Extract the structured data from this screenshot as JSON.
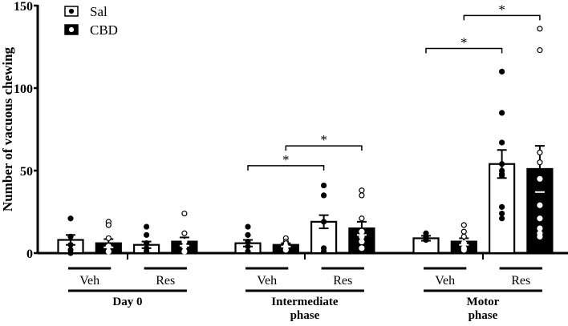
{
  "chart_data": {
    "type": "bar",
    "ylabel": "Number of vacuous chewing",
    "ylim": [
      0,
      150
    ],
    "yticks": [
      0,
      50,
      100,
      150
    ],
    "legend": {
      "placement": "top-left",
      "entries": [
        {
          "name": "Sal",
          "fill": "#ffffff",
          "marker": "#000000"
        },
        {
          "name": "CBD",
          "fill": "#000000",
          "marker": "#ffffff"
        }
      ]
    },
    "phases": [
      {
        "label": [
          "Day 0"
        ],
        "groups": [
          {
            "label": "Veh",
            "bars": [
              {
                "series": "Sal",
                "mean": 8,
                "sem": 3,
                "points": [
                  21,
                  10,
                  5,
                  2,
                  0
                ]
              },
              {
                "series": "CBD",
                "mean": 6,
                "sem": 2.5,
                "points": [
                  19,
                  17,
                  9,
                  4,
                  1
                ]
              }
            ]
          },
          {
            "label": "Res",
            "bars": [
              {
                "series": "Sal",
                "mean": 5,
                "sem": 2,
                "points": [
                  16,
                  11,
                  6,
                  3,
                  1
                ]
              },
              {
                "series": "CBD",
                "mean": 7,
                "sem": 2.5,
                "points": [
                  24,
                  12,
                  7,
                  4,
                  1
                ]
              }
            ]
          }
        ]
      },
      {
        "label": [
          "Intermediate",
          "phase"
        ],
        "groups": [
          {
            "label": "Veh",
            "bars": [
              {
                "series": "Sal",
                "mean": 6,
                "sem": 2,
                "points": [
                  16,
                  11,
                  7,
                  4,
                  1
                ]
              },
              {
                "series": "CBD",
                "mean": 5,
                "sem": 1,
                "points": [
                  9,
                  7,
                  6,
                  4,
                  2
                ]
              }
            ]
          },
          {
            "label": "Res",
            "bars": [
              {
                "series": "Sal",
                "mean": 19,
                "sem": 4,
                "points": [
                  41,
                  35,
                  19,
                  3,
                  1
                ]
              },
              {
                "series": "CBD",
                "mean": 15,
                "sem": 4,
                "points": [
                  38,
                  35,
                  21,
                  13,
                  10,
                  7,
                  3
                ]
              }
            ]
          }
        ]
      },
      {
        "label": [
          "Motor",
          "phase"
        ],
        "groups": [
          {
            "label": "Veh",
            "bars": [
              {
                "series": "Sal",
                "mean": 9,
                "sem": 1.5,
                "points": [
                  12,
                  10,
                  8
                ]
              },
              {
                "series": "CBD",
                "mean": 7,
                "sem": 2,
                "points": [
                  17,
                  13,
                  10,
                  6,
                  3,
                  2
                ]
              }
            ]
          },
          {
            "label": "Res",
            "bars": [
              {
                "series": "Sal",
                "mean": 54,
                "sem": 8.5,
                "points": [
                  110,
                  85,
                  67,
                  54,
                  50,
                  48,
                  47,
                  28,
                  24,
                  21
                ]
              },
              {
                "series": "CBD",
                "mean": 51,
                "sem": 14,
                "points": [
                  136,
                  123,
                  61,
                  55,
                  45,
                  29,
                  21,
                  15,
                  12,
                  10
                ]
              }
            ]
          }
        ]
      }
    ],
    "annotations": [
      {
        "phase": 1,
        "from": "Veh-Sal",
        "to": "Res-Sal",
        "y": 53,
        "text": "*"
      },
      {
        "phase": 1,
        "from": "Veh-CBD",
        "to": "Res-CBD",
        "y": 65,
        "text": "*"
      },
      {
        "phase": 2,
        "from": "Veh-Sal",
        "to": "Res-Sal",
        "y": 124,
        "text": "*"
      },
      {
        "phase": 2,
        "from": "Veh-CBD",
        "to": "Res-CBD",
        "y": 144,
        "text": "*"
      }
    ]
  }
}
